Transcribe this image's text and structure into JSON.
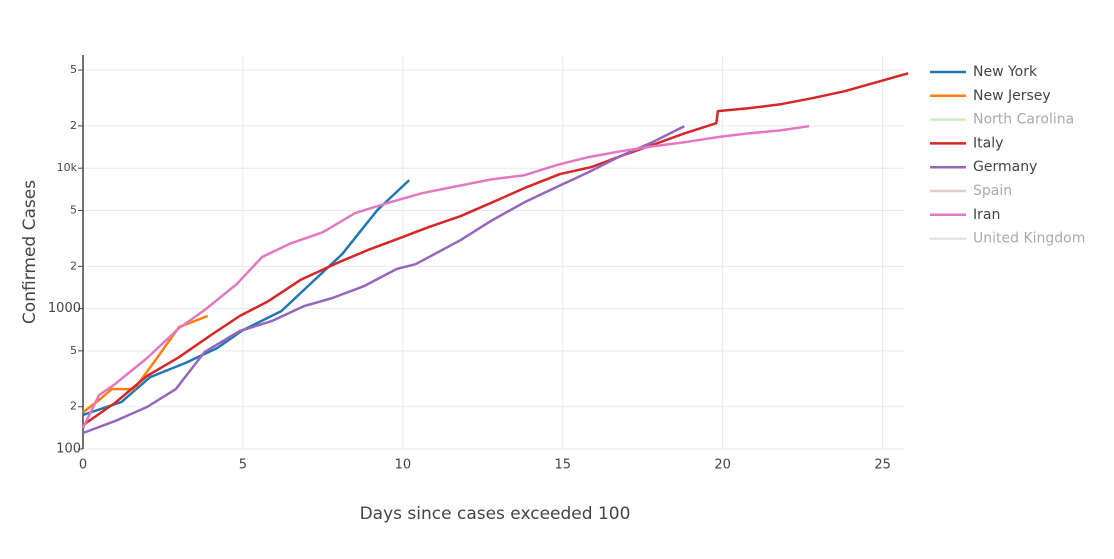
{
  "chart_data": {
    "type": "line",
    "xlabel": "Days since cases exceeded 100",
    "ylabel": "Confirmed Cases",
    "yscale": "log",
    "grid": true,
    "legend": "right",
    "xlim": [
      0,
      25.7
    ],
    "ylim": [
      100,
      64000
    ],
    "xticks": [
      0,
      5,
      10,
      15,
      20,
      25
    ],
    "yticks": [
      100,
      {
        "value": 200,
        "label": "2"
      },
      {
        "value": 500,
        "label": "5"
      },
      1000,
      {
        "value": 2000,
        "label": "2"
      },
      {
        "value": 5000,
        "label": "5"
      },
      {
        "value": 10000,
        "label": "10k"
      },
      {
        "value": 20000,
        "label": "2"
      },
      {
        "value": 50000,
        "label": "5"
      }
    ],
    "series": [
      {
        "name": "New York",
        "color": "#1f77b4",
        "visible": true,
        "x": [
          0,
          1.2,
          2.1,
          3.2,
          4.2,
          5.0,
          6.2,
          7.2,
          8.1,
          9.2,
          10.2
        ],
        "values": [
          175,
          216,
          325,
          410,
          524,
          703,
          960,
          1570,
          2440,
          5020,
          8220
        ]
      },
      {
        "name": "New Jersey",
        "color": "#ff7f0e",
        "visible": true,
        "x": [
          0,
          0.5,
          0.9,
          1.6,
          2.2,
          3.0,
          3.9
        ],
        "values": [
          183,
          223,
          267,
          267,
          410,
          738,
          885
        ]
      },
      {
        "name": "North Carolina",
        "color": "#98df8a",
        "visible": "legendonly",
        "x": [],
        "values": []
      },
      {
        "name": "Italy",
        "color": "#d62728",
        "visible": true,
        "x": [
          0,
          1,
          2,
          3,
          4,
          4.9,
          5.8,
          6.8,
          8,
          8.9,
          9.9,
          10.8,
          11.8,
          12.8,
          13.8,
          14.9,
          15.9,
          16.9,
          17.8,
          18.8,
          19.8,
          19.85,
          20.8,
          21.8,
          22.8,
          23.8,
          24.8,
          25.8
        ],
        "values": [
          148,
          213,
          331,
          451,
          648,
          885,
          1130,
          1600,
          2140,
          2610,
          3170,
          3800,
          4550,
          5720,
          7210,
          9060,
          10200,
          12400,
          14600,
          17700,
          20900,
          25500,
          26700,
          28500,
          31500,
          35300,
          40900,
          47400
        ]
      },
      {
        "name": "Germany",
        "color": "#9467bd",
        "visible": true,
        "x": [
          0,
          1,
          2,
          2.9,
          3.8,
          4.9,
          5.9,
          6.9,
          7.8,
          8.8,
          9.8,
          10.4,
          11.8,
          12.8,
          13.8,
          14.8,
          15.8,
          16.8,
          17.8,
          18.8
        ],
        "values": [
          130,
          158,
          199,
          267,
          490,
          692,
          815,
          1040,
          1190,
          1450,
          1910,
          2070,
          3070,
          4270,
          5720,
          7330,
          9370,
          12200,
          15300,
          19900
        ]
      },
      {
        "name": "Spain",
        "color": "#c49c94",
        "visible": "legendonly",
        "x": [],
        "values": []
      },
      {
        "name": "Iran",
        "color": "#e377c2",
        "visible": true,
        "x": [
          0,
          0.5,
          1,
          2,
          3,
          3.8,
          4.8,
          5.6,
          6.5,
          7.5,
          8.5,
          9.5,
          10.6,
          11.7,
          12.8,
          13.8,
          14.8,
          15.8,
          16.8,
          17.8,
          18.8,
          19.8,
          20.8,
          21.8,
          22.7
        ],
        "values": [
          141,
          242,
          290,
          444,
          726,
          976,
          1490,
          2330,
          2920,
          3500,
          4780,
          5630,
          6640,
          7450,
          8350,
          8920,
          10500,
          12000,
          13200,
          14300,
          15300,
          16600,
          17700,
          18600,
          19900
        ]
      },
      {
        "name": "United Kingdom",
        "color": "#c7c7c7",
        "visible": "legendonly",
        "x": [],
        "values": []
      }
    ]
  }
}
